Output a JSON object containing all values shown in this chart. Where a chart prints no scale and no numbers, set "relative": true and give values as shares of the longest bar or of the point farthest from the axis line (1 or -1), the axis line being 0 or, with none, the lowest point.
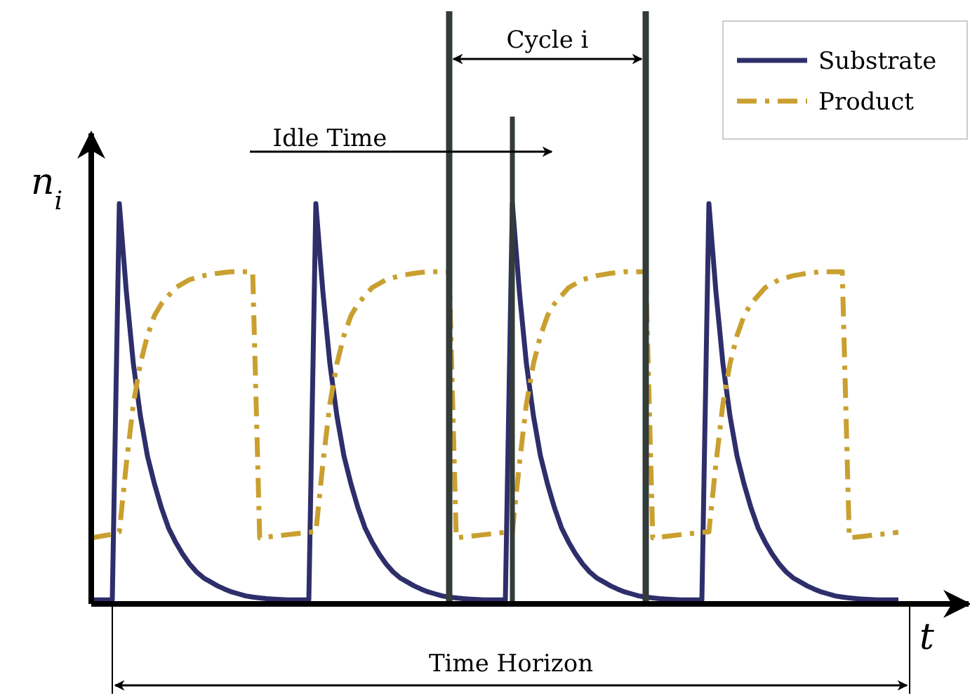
{
  "chart_data": {
    "type": "line",
    "relative": true,
    "xlabel": "t",
    "ylabel": "n$_{i}$",
    "legend": "top right",
    "categories": [
      null,
      null,
      null,
      null,
      null,
      null,
      null,
      null,
      null,
      null,
      null,
      null,
      null,
      null,
      null,
      null,
      null,
      null,
      null,
      null,
      null,
      null,
      null,
      null,
      null,
      null,
      null,
      null,
      null,
      null,
      null,
      null,
      null,
      null,
      null,
      null,
      null,
      null,
      null,
      null,
      null,
      null,
      null,
      null,
      null,
      null,
      null,
      null,
      null,
      null,
      null,
      null,
      null,
      null,
      null,
      null,
      null,
      null,
      null,
      null,
      null,
      null,
      null,
      null,
      null,
      null,
      null,
      null,
      null,
      null,
      null,
      null,
      null,
      null,
      null,
      null,
      null,
      null,
      null,
      null,
      null,
      null,
      null,
      null,
      null,
      null,
      null,
      null,
      null,
      null,
      null,
      null,
      null,
      null,
      null,
      null,
      null,
      null,
      null,
      null,
      null,
      null,
      null,
      null,
      null,
      null,
      null,
      null,
      null,
      null,
      null,
      null,
      null,
      null,
      null,
      null
    ],
    "series": [
      {
        "name": "Substrate",
        "color": "#2e2e6b",
        "line_style": "solid",
        "values": [
          0.01,
          0.01,
          0.01,
          0.01,
          1,
          0.78,
          0.6,
          0.47,
          0.37,
          0.3,
          0.24,
          0.19,
          0.155,
          0.125,
          0.1,
          0.08,
          0.065,
          0.055,
          0.045,
          0.037,
          0.03,
          0.025,
          0.02,
          0.017,
          0.015,
          0.013,
          0.012,
          0.011,
          0.01,
          0.01,
          0.01,
          0.01,
          1,
          0.78,
          0.6,
          0.47,
          0.37,
          0.3,
          0.24,
          0.19,
          0.155,
          0.125,
          0.1,
          0.08,
          0.065,
          0.055,
          0.045,
          0.037,
          0.03,
          0.025,
          0.02,
          0.017,
          0.015,
          0.013,
          0.012,
          0.011,
          0.01,
          0.01,
          0.01,
          0.01,
          1,
          0.78,
          0.6,
          0.47,
          0.37,
          0.3,
          0.24,
          0.19,
          0.155,
          0.125,
          0.1,
          0.08,
          0.065,
          0.055,
          0.045,
          0.037,
          0.03,
          0.025,
          0.02,
          0.017,
          0.015,
          0.013,
          0.012,
          0.011,
          0.01,
          0.01,
          0.01,
          0.01,
          1,
          0.78,
          0.6,
          0.47,
          0.37,
          0.3,
          0.24,
          0.19,
          0.155,
          0.125,
          0.1,
          0.08,
          0.065,
          0.055,
          0.045,
          0.037,
          0.03,
          0.025,
          0.02,
          0.017,
          0.015,
          0.013,
          0.012,
          0.011,
          0.01,
          0.01,
          0.01,
          0.01
        ]
      },
      {
        "name": "Product",
        "color": "#c9a030",
        "line_style": "dashdot",
        "values": [
          0.165,
          0.168,
          0.171,
          0.174,
          0.18,
          0.35,
          0.5,
          0.6,
          0.67,
          0.72,
          0.75,
          0.77,
          0.79,
          0.8,
          0.81,
          0.815,
          0.82,
          0.823,
          0.826,
          0.828,
          0.83,
          0.83,
          0.83,
          0.83,
          0.165,
          0.167,
          0.169,
          0.171,
          0.173,
          0.175,
          0.177,
          0.179,
          0.18,
          0.35,
          0.5,
          0.6,
          0.67,
          0.72,
          0.75,
          0.77,
          0.79,
          0.8,
          0.81,
          0.815,
          0.82,
          0.823,
          0.826,
          0.828,
          0.83,
          0.83,
          0.83,
          0.83,
          0.165,
          0.167,
          0.169,
          0.171,
          0.173,
          0.175,
          0.177,
          0.179,
          0.18,
          0.35,
          0.5,
          0.6,
          0.67,
          0.72,
          0.75,
          0.77,
          0.79,
          0.8,
          0.81,
          0.815,
          0.82,
          0.823,
          0.826,
          0.828,
          0.83,
          0.83,
          0.83,
          0.83,
          0.165,
          0.167,
          0.169,
          0.171,
          0.173,
          0.175,
          0.177,
          0.179,
          0.18,
          0.35,
          0.5,
          0.6,
          0.67,
          0.72,
          0.75,
          0.77,
          0.79,
          0.8,
          0.81,
          0.815,
          0.82,
          0.823,
          0.826,
          0.828,
          0.83,
          0.83,
          0.83,
          0.83,
          0.165,
          0.167,
          0.169,
          0.171,
          0.173,
          0.175,
          0.177,
          0.179
        ]
      }
    ],
    "annotations": [
      "Cycle i",
      "Idle Time",
      "Time Horizon"
    ]
  }
}
